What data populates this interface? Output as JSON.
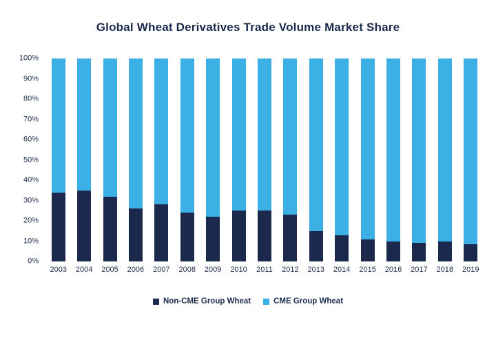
{
  "chart_data": {
    "type": "bar",
    "subtype": "stacked-100-percent",
    "title": "Global Wheat Derivatives Trade Volume Market Share",
    "categories": [
      "2003",
      "2004",
      "2005",
      "2006",
      "2007",
      "2008",
      "2009",
      "2010",
      "2011",
      "2012",
      "2013",
      "2014",
      "2015",
      "2016",
      "2017",
      "2018",
      "2019"
    ],
    "series": [
      {
        "name": "Non-CME Group Wheat",
        "color": "#1b2a4c",
        "values": [
          34,
          35,
          32,
          26,
          28,
          24,
          22,
          25,
          25,
          23,
          15,
          13,
          11,
          10,
          9,
          10,
          8.5
        ]
      },
      {
        "name": "CME Group Wheat",
        "color": "#3cb0e5",
        "values": [
          66,
          65,
          68,
          74,
          72,
          76,
          78,
          75,
          75,
          77,
          85,
          87,
          89,
          90,
          91,
          90,
          91.5
        ]
      }
    ],
    "xlabel": "",
    "ylabel": "",
    "ylim": [
      0,
      100
    ],
    "yticks": [
      "0%",
      "10%",
      "20%",
      "30%",
      "40%",
      "50%",
      "60%",
      "70%",
      "80%",
      "90%",
      "100%"
    ],
    "grid": false,
    "legend_position": "bottom"
  }
}
